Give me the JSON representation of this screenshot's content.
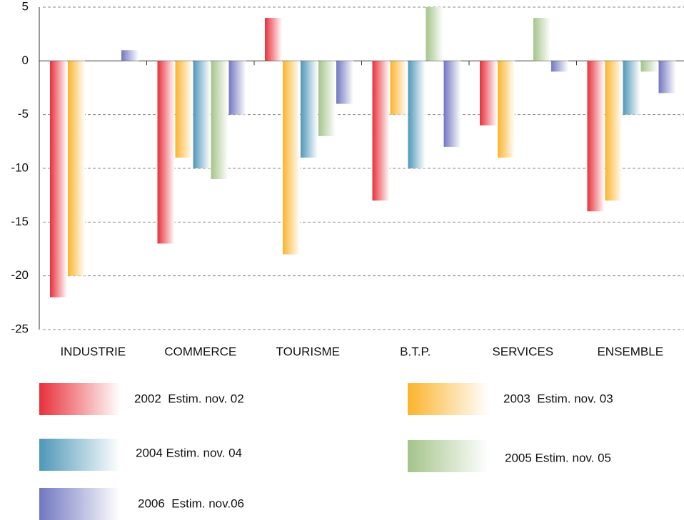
{
  "chart_data": {
    "type": "bar",
    "categories": [
      "INDUSTRIE",
      "COMMERCE",
      "TOURISME",
      "B.T.P.",
      "SERVICES",
      "ENSEMBLE"
    ],
    "series": [
      {
        "name": "2002  Estim. nov. 02",
        "color": "#e8303a",
        "values": [
          -22,
          -17,
          4,
          -13,
          -6,
          -14
        ]
      },
      {
        "name": "2003  Estim. nov. 03",
        "color": "#fbb42c",
        "values": [
          -20,
          -9,
          -18,
          -5,
          -9,
          -13
        ]
      },
      {
        "name": "2004 Estim. nov. 04",
        "color": "#4f97b8",
        "values": [
          0,
          -10,
          -9,
          -10,
          0,
          -5
        ]
      },
      {
        "name": "2005 Estim. nov. 05",
        "color": "#a4c48a",
        "values": [
          0,
          -11,
          -7,
          5,
          4,
          -1
        ]
      },
      {
        "name": "2006  Estim. nov.06",
        "color": "#7177c0",
        "values": [
          1,
          -5,
          -4,
          -8,
          -1,
          -3
        ]
      }
    ],
    "ylim": [
      -25,
      5
    ],
    "yticks": [
      5,
      0,
      -5,
      -10,
      -15,
      -20,
      -25
    ],
    "grid": true
  }
}
